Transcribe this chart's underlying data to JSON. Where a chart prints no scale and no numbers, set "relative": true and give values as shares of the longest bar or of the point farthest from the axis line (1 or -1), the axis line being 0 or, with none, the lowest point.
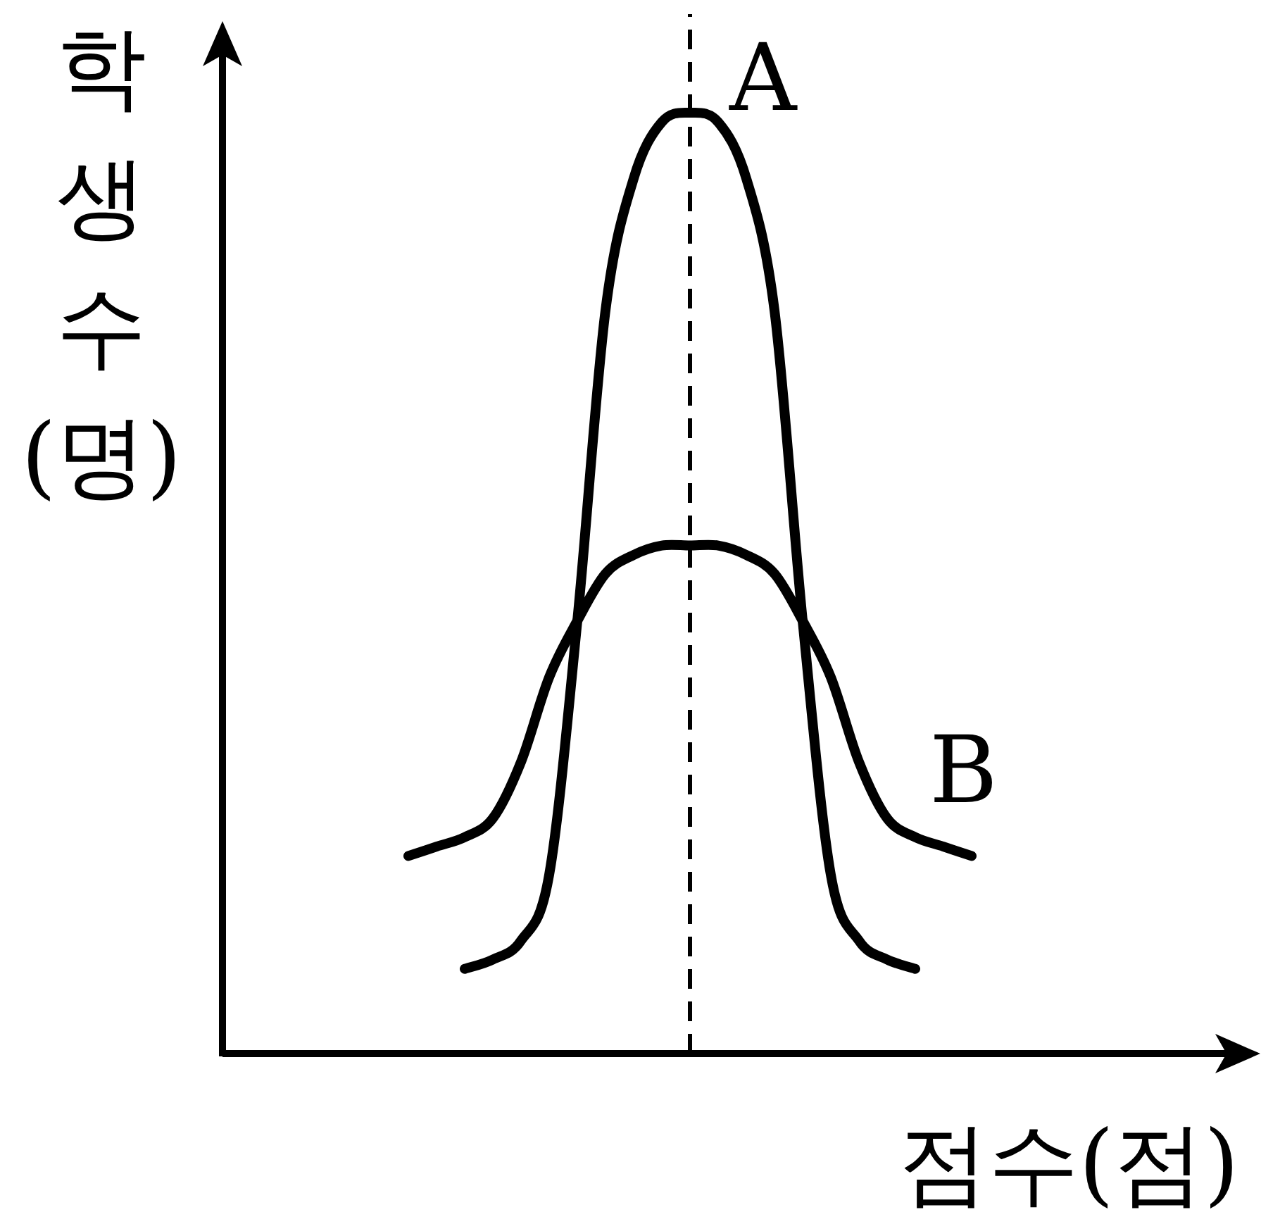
{
  "chart_data": {
    "type": "line",
    "relative": true,
    "xlabel": "점수(점)",
    "ylabel": "학생수(명)",
    "categories": [
      null,
      null,
      null,
      null,
      null,
      null,
      null,
      null,
      null,
      null,
      null,
      null,
      null,
      null,
      null,
      null,
      null,
      null,
      null,
      null,
      null
    ],
    "series": [
      {
        "name": "A",
        "color": "#000000",
        "values": [
          null,
          null,
          0.09,
          0.1,
          0.12,
          0.19,
          0.46,
          0.79,
          0.93,
          0.99,
          1,
          0.99,
          0.93,
          0.79,
          0.46,
          0.19,
          0.12,
          0.1,
          0.09,
          null,
          null
        ]
      },
      {
        "name": "B",
        "color": "#000000",
        "values": [
          0.21,
          0.22,
          0.23,
          0.25,
          0.31,
          0.4,
          0.46,
          0.51,
          0.53,
          0.54,
          0.54,
          0.54,
          0.53,
          0.51,
          0.46,
          0.4,
          0.31,
          0.25,
          0.23,
          0.22,
          0.21
        ]
      }
    ],
    "marker": "none",
    "line_style": "solid"
  }
}
